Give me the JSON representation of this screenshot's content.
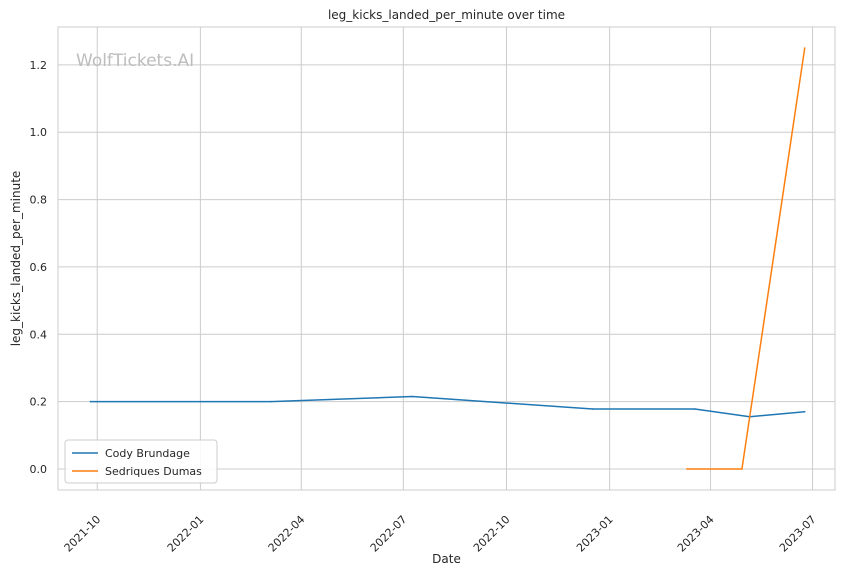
{
  "watermark": "WolfTickets.AI",
  "chart_data": {
    "type": "line",
    "title": "leg_kicks_landed_per_minute over time",
    "xlabel": "Date",
    "ylabel": "leg_kicks_landed_per_minute",
    "x_type": "date",
    "xlim": [
      "2021-08-27",
      "2023-07-21"
    ],
    "ylim": [
      -0.0625,
      1.3125
    ],
    "x_ticks": [
      "2021-10",
      "2022-01",
      "2022-04",
      "2022-07",
      "2022-10",
      "2023-01",
      "2023-04",
      "2023-07"
    ],
    "x_tick_dates": [
      "2021-10-01",
      "2022-01-01",
      "2022-04-01",
      "2022-07-01",
      "2022-10-01",
      "2023-01-01",
      "2023-04-01",
      "2023-07-01"
    ],
    "y_ticks": [
      "0.0",
      "0.2",
      "0.4",
      "0.6",
      "0.8",
      "1.0",
      "1.2"
    ],
    "y_tick_values": [
      0.0,
      0.2,
      0.4,
      0.6,
      0.8,
      1.0,
      1.2
    ],
    "grid": true,
    "legend_position": "lower-left",
    "series": [
      {
        "name": "Cody Brundage",
        "color": "#1f77b4",
        "x": [
          "2021-09-25",
          "2022-03-05",
          "2022-07-09",
          "2022-12-17",
          "2023-03-18",
          "2023-05-06",
          "2023-06-24"
        ],
        "y": [
          0.2,
          0.2,
          0.215,
          0.178,
          0.178,
          0.155,
          0.17
        ]
      },
      {
        "name": "Sedriques Dumas",
        "color": "#ff7f0e",
        "x": [
          "2023-03-11",
          "2023-04-29",
          "2023-06-24"
        ],
        "y": [
          0.0,
          0.0,
          1.25
        ]
      }
    ]
  }
}
